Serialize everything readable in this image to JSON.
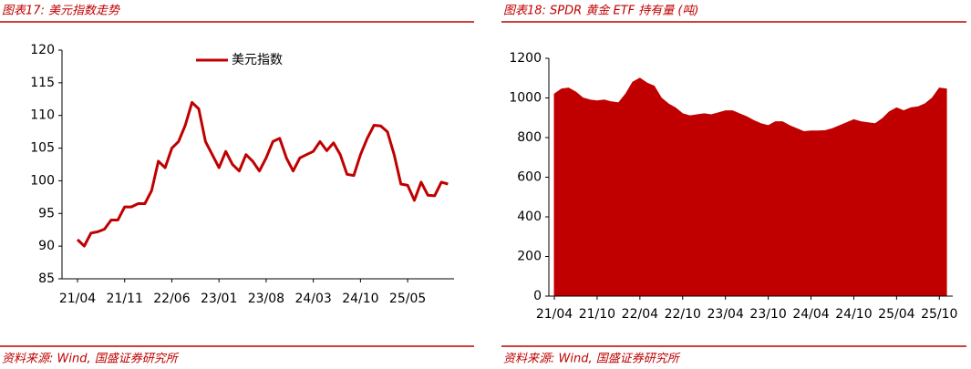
{
  "chart_data": [
    {
      "type": "line",
      "title": "图表17: 美元指数走势",
      "source": "资料来源: Wind, 国盛证券研究所",
      "categories": [
        "21/04",
        null,
        null,
        null,
        null,
        null,
        null,
        "21/11",
        null,
        null,
        null,
        null,
        null,
        null,
        "22/06",
        null,
        null,
        null,
        null,
        null,
        null,
        "23/01",
        null,
        null,
        null,
        null,
        null,
        null,
        "23/08",
        null,
        null,
        null,
        null,
        null,
        null,
        "24/03",
        null,
        null,
        null,
        null,
        null,
        null,
        "24/10",
        null,
        null,
        null,
        null,
        null,
        null,
        "25/05",
        null,
        null,
        null,
        null,
        null,
        null
      ],
      "series": [
        {
          "name": "美元指数",
          "color": "#c00000",
          "values": [
            91,
            90,
            92,
            92.2,
            92.6,
            94,
            94,
            96,
            96,
            96.5,
            96.5,
            98.5,
            103,
            102,
            105,
            106,
            108.5,
            112,
            111,
            106,
            104,
            102,
            104.5,
            102.5,
            101.5,
            104,
            103,
            101.5,
            103.5,
            106,
            106.5,
            103.5,
            101.5,
            103.5,
            104,
            104.5,
            106,
            104.6,
            105.8,
            104,
            101,
            100.8,
            104,
            106.5,
            108.5,
            108.4,
            107.5,
            104,
            99.5,
            99.3,
            97,
            99.8,
            97.8,
            97.7,
            99.8,
            99.5
          ]
        }
      ],
      "ylim": [
        85,
        120
      ],
      "yticks": [
        85,
        90,
        95,
        100,
        105,
        110,
        115,
        120
      ],
      "legend": "top"
    },
    {
      "type": "area",
      "title": "图表18: SPDR 黄金 ETF 持有量 (吨)",
      "source": "资料来源: Wind, 国盛证券研究所",
      "categories": [
        "21/04",
        null,
        null,
        null,
        null,
        null,
        "21/10",
        null,
        null,
        null,
        null,
        null,
        "22/04",
        null,
        null,
        null,
        null,
        null,
        "22/10",
        null,
        null,
        null,
        null,
        null,
        "23/04",
        null,
        null,
        null,
        null,
        null,
        "23/10",
        null,
        null,
        null,
        null,
        null,
        "24/04",
        null,
        null,
        null,
        null,
        null,
        "24/10",
        null,
        null,
        null,
        null,
        null,
        "25/04",
        null,
        null,
        null,
        null,
        null,
        "25/10",
        null
      ],
      "series": [
        {
          "name": null,
          "color": "#c00000",
          "values": [
            1020,
            1045,
            1050,
            1030,
            1000,
            990,
            985,
            990,
            980,
            975,
            1020,
            1080,
            1100,
            1075,
            1060,
            1000,
            970,
            950,
            920,
            910,
            915,
            920,
            915,
            925,
            935,
            935,
            920,
            905,
            885,
            870,
            860,
            880,
            880,
            860,
            845,
            830,
            833,
            833,
            835,
            845,
            860,
            875,
            890,
            880,
            875,
            870,
            895,
            930,
            950,
            935,
            950,
            955,
            970,
            1000,
            1050,
            1045
          ]
        }
      ],
      "ylim": [
        0,
        1200
      ],
      "yticks": [
        0,
        200,
        400,
        600,
        800,
        1000,
        1200
      ]
    }
  ]
}
